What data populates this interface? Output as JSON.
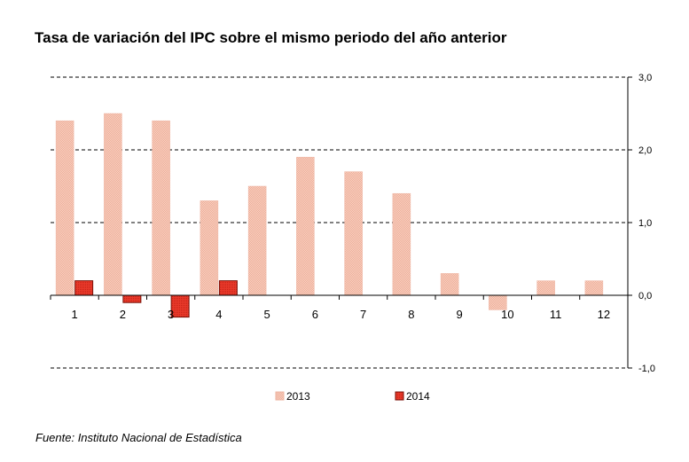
{
  "title": "Tasa de variación del IPC sobre el mismo periodo del año anterior",
  "source": "Fuente: Instituto Nacional de Estadística",
  "colors": {
    "series_2013_fill": "#f6c6b4",
    "series_2013_stroke": "#eeb4a2",
    "series_2014_fill": "#e8392a",
    "series_2014_stroke": "#7a1208",
    "grid": "#000000"
  },
  "chart_data": {
    "type": "bar",
    "title": "Tasa de variación del IPC sobre el mismo periodo del año anterior",
    "categories": [
      "1",
      "2",
      "3",
      "4",
      "5",
      "6",
      "7",
      "8",
      "9",
      "10",
      "11",
      "12"
    ],
    "series": [
      {
        "name": "2013",
        "values": [
          2.4,
          2.5,
          2.4,
          1.3,
          1.5,
          1.9,
          1.7,
          1.4,
          0.3,
          -0.2,
          0.2,
          0.2
        ]
      },
      {
        "name": "2014",
        "values": [
          0.2,
          -0.1,
          -0.3,
          0.2,
          null,
          null,
          null,
          null,
          null,
          null,
          null,
          null
        ]
      }
    ],
    "ylim": [
      -1.0,
      3.0
    ],
    "yticks": [
      3.0,
      2.0,
      1.0,
      0.0,
      -1.0
    ],
    "ytick_labels": [
      "3,0",
      "2,0",
      "1,0",
      "0,0",
      "-1,0"
    ],
    "y_axis_side": "right",
    "grid": true,
    "grid_style": "dashed",
    "legend_position": "bottom"
  }
}
